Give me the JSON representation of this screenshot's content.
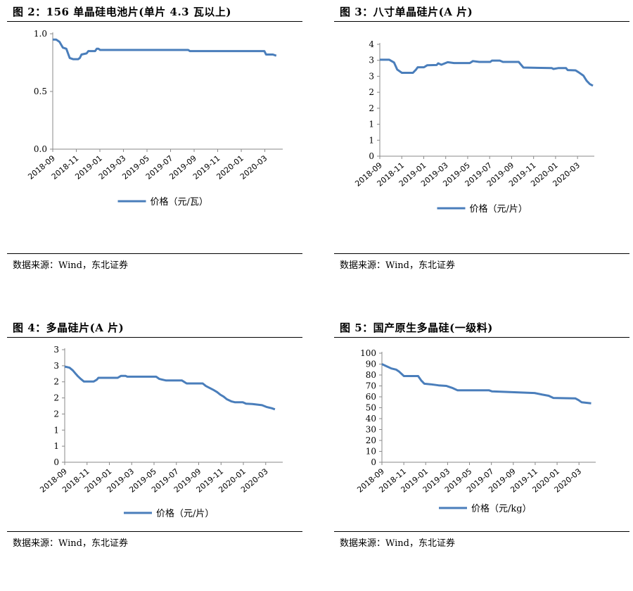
{
  "panels": [
    {
      "title": "图 2：156 单晶硅电池片(单片 4.3 瓦以上)",
      "source": "数据来源：Wind，东北证券",
      "chart_data": {
        "type": "line",
        "title": "156 单晶硅电池片(单片 4.3 瓦以上)",
        "x_ticks": [
          "2018-09",
          "2018-11",
          "2019-01",
          "2019-03",
          "2019-05",
          "2019-07",
          "2019-09",
          "2019-11",
          "2020-01",
          "2020-03"
        ],
        "y_ticks": [
          "0.0",
          "0.5",
          "1.0"
        ],
        "ylim": [
          0,
          1.0
        ],
        "legend": "价格（元/瓦）",
        "legend_position": "bottom",
        "grid": false,
        "color": "#4a7ebb",
        "series": [
          {
            "name": "价格（元/瓦）",
            "points": [
              [
                0,
                0.95
              ],
              [
                0.2,
                0.95
              ],
              [
                0.4,
                0.93
              ],
              [
                0.6,
                0.88
              ],
              [
                0.8,
                0.87
              ],
              [
                0.9,
                0.83
              ],
              [
                1.0,
                0.79
              ],
              [
                1.2,
                0.78
              ],
              [
                1.5,
                0.78
              ],
              [
                1.6,
                0.79
              ],
              [
                1.7,
                0.82
              ],
              [
                2.0,
                0.83
              ],
              [
                2.1,
                0.85
              ],
              [
                2.5,
                0.85
              ],
              [
                2.6,
                0.87
              ],
              [
                2.7,
                0.87
              ],
              [
                2.8,
                0.86
              ],
              [
                7.9,
                0.86
              ],
              [
                8.0,
                0.86
              ],
              [
                8.1,
                0.85
              ],
              [
                12.3,
                0.85
              ],
              [
                12.5,
                0.85
              ],
              [
                12.6,
                0.82
              ],
              [
                13.0,
                0.82
              ],
              [
                13.2,
                0.81
              ]
            ]
          }
        ]
      }
    },
    {
      "title": "图 3：八寸单晶硅片(A 片)",
      "source": "数据来源：Wind，东北证券",
      "chart_data": {
        "type": "line",
        "title": "八寸单晶硅片(A 片)",
        "x_ticks": [
          "2018-09",
          "2018-11",
          "2019-01",
          "2019-03",
          "2019-05",
          "2019-07",
          "2019-09",
          "2019-11",
          "2020-01",
          "2020-03"
        ],
        "y_ticks": [
          "0",
          "1",
          "1",
          "2",
          "2",
          "3",
          "3",
          "4"
        ],
        "ylim": [
          0,
          4
        ],
        "legend": "价格（元/片）",
        "legend_position": "bottom",
        "grid": false,
        "color": "#4a7ebb",
        "series": [
          {
            "name": "价格（元/片）",
            "points": [
              [
                0,
                3.45
              ],
              [
                0.6,
                3.45
              ],
              [
                0.9,
                3.35
              ],
              [
                1.1,
                3.1
              ],
              [
                1.4,
                2.98
              ],
              [
                2.1,
                2.98
              ],
              [
                2.3,
                3.1
              ],
              [
                2.4,
                3.18
              ],
              [
                2.8,
                3.18
              ],
              [
                3.0,
                3.25
              ],
              [
                3.6,
                3.26
              ],
              [
                3.7,
                3.32
              ],
              [
                3.9,
                3.27
              ],
              [
                4.3,
                3.36
              ],
              [
                4.7,
                3.33
              ],
              [
                5.7,
                3.33
              ],
              [
                5.9,
                3.4
              ],
              [
                6.3,
                3.37
              ],
              [
                7.0,
                3.37
              ],
              [
                7.1,
                3.42
              ],
              [
                7.6,
                3.42
              ],
              [
                7.8,
                3.37
              ],
              [
                8.8,
                3.37
              ],
              [
                8.9,
                3.3
              ],
              [
                9.1,
                3.17
              ],
              [
                10.9,
                3.15
              ],
              [
                11.0,
                3.12
              ],
              [
                11.3,
                3.15
              ],
              [
                11.8,
                3.15
              ],
              [
                11.9,
                3.08
              ],
              [
                12.4,
                3.07
              ],
              [
                12.6,
                3.0
              ],
              [
                12.9,
                2.88
              ],
              [
                13.1,
                2.7
              ],
              [
                13.3,
                2.58
              ],
              [
                13.5,
                2.52
              ]
            ]
          }
        ]
      }
    },
    {
      "title": "图 4：多晶硅片(A 片)",
      "source": "数据来源：Wind，东北证券",
      "chart_data": {
        "type": "line",
        "title": "多晶硅片(A 片)",
        "x_ticks": [
          "2018-09",
          "2018-11",
          "2019-01",
          "2019-03",
          "2019-05",
          "2019-07",
          "2019-09",
          "2019-11",
          "2020-01",
          "2020-03"
        ],
        "y_ticks": [
          "0",
          "1",
          "1",
          "2",
          "2",
          "2",
          "3",
          "3"
        ],
        "ylim": [
          0,
          3
        ],
        "legend": "价格（元/片）",
        "legend_position": "bottom",
        "grid": false,
        "color": "#4a7ebb",
        "series": [
          {
            "name": "价格（元/片）",
            "points": [
              [
                0,
                2.55
              ],
              [
                0.3,
                2.52
              ],
              [
                0.5,
                2.45
              ],
              [
                0.7,
                2.35
              ],
              [
                0.8,
                2.3
              ],
              [
                1.0,
                2.22
              ],
              [
                1.2,
                2.15
              ],
              [
                1.5,
                2.15
              ],
              [
                1.8,
                2.15
              ],
              [
                2.0,
                2.2
              ],
              [
                2.1,
                2.25
              ],
              [
                2.5,
                2.25
              ],
              [
                3.3,
                2.25
              ],
              [
                3.5,
                2.3
              ],
              [
                3.8,
                2.3
              ],
              [
                3.9,
                2.28
              ],
              [
                5.7,
                2.28
              ],
              [
                5.9,
                2.22
              ],
              [
                6.1,
                2.2
              ],
              [
                6.3,
                2.18
              ],
              [
                7.3,
                2.18
              ],
              [
                7.6,
                2.1
              ],
              [
                8.6,
                2.1
              ],
              [
                8.8,
                2.03
              ],
              [
                9.3,
                1.92
              ],
              [
                9.5,
                1.87
              ],
              [
                9.7,
                1.8
              ],
              [
                9.9,
                1.75
              ],
              [
                10.1,
                1.68
              ],
              [
                10.4,
                1.62
              ],
              [
                10.6,
                1.6
              ],
              [
                11.1,
                1.6
              ],
              [
                11.3,
                1.56
              ],
              [
                11.7,
                1.55
              ],
              [
                12.3,
                1.52
              ],
              [
                12.6,
                1.47
              ],
              [
                12.9,
                1.44
              ],
              [
                13.1,
                1.41
              ]
            ]
          }
        ]
      }
    },
    {
      "title": "图 5：国产原生多晶硅(一级料)",
      "source": "数据来源：Wind，东北证券",
      "chart_data": {
        "type": "line",
        "title": "国产原生多晶硅(一级料)",
        "x_ticks": [
          "2018-09",
          "2018-11",
          "2019-01",
          "2019-03",
          "2019-05",
          "2019-07",
          "2019-09",
          "2019-11",
          "2020-01",
          "2020-03"
        ],
        "y_ticks": [
          "0",
          "10",
          "20",
          "30",
          "40",
          "50",
          "60",
          "70",
          "80",
          "90",
          "100"
        ],
        "ylim": [
          0,
          100
        ],
        "legend": "价格（元/kg）",
        "legend_position": "bottom",
        "grid": false,
        "color": "#4a7ebb",
        "series": [
          {
            "name": "价格（元/kg）",
            "points": [
              [
                0,
                90
              ],
              [
                0.3,
                88
              ],
              [
                0.6,
                86
              ],
              [
                0.9,
                85
              ],
              [
                1.1,
                83
              ],
              [
                1.4,
                79
              ],
              [
                2.3,
                79
              ],
              [
                2.5,
                75
              ],
              [
                2.7,
                72
              ],
              [
                3.1,
                71.5
              ],
              [
                3.6,
                70.5
              ],
              [
                4.1,
                70
              ],
              [
                4.5,
                68
              ],
              [
                4.8,
                66
              ],
              [
                6.8,
                66
              ],
              [
                7.0,
                65
              ],
              [
                8.7,
                64
              ],
              [
                9.7,
                63.5
              ],
              [
                10.2,
                62
              ],
              [
                10.6,
                61
              ],
              [
                10.9,
                59
              ],
              [
                12.3,
                58.5
              ],
              [
                12.5,
                57
              ],
              [
                12.7,
                55
              ],
              [
                13.0,
                54.5
              ],
              [
                13.3,
                54
              ]
            ]
          }
        ]
      }
    }
  ]
}
